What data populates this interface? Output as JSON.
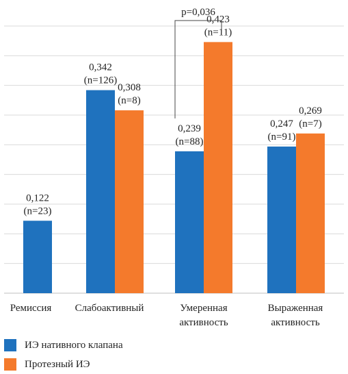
{
  "chart_data": {
    "type": "bar",
    "categories": [
      "Ремиссия",
      "Слабоактивный",
      "Умеренная активность",
      "Выраженная активность"
    ],
    "series": [
      {
        "name": "ИЭ нативного клапана",
        "color": "#1f72be",
        "values": [
          0.122,
          0.342,
          0.239,
          0.247
        ],
        "labels": [
          "0,122",
          "0,342",
          "0,239",
          "0,247"
        ],
        "n": [
          "(n=23)",
          "(n=126)",
          "(n=88)",
          "(n=91)"
        ]
      },
      {
        "name": "Протезный ИЭ",
        "color": "#f47a2c",
        "values": [
          null,
          0.308,
          0.423,
          0.269
        ],
        "labels": [
          null,
          "0,308",
          "0,423",
          "0,269"
        ],
        "n": [
          null,
          "(n=8)",
          "(n=11)",
          "(n=7)"
        ]
      }
    ],
    "ylim": [
      0,
      0.45
    ],
    "grid": true,
    "legend": "bottom-left",
    "annotation": {
      "text": "p=0,036",
      "category_index": 2
    }
  }
}
